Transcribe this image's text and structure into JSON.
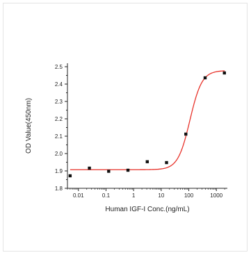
{
  "chart_data": {
    "type": "scatter",
    "title": "",
    "xlabel": "Human IGF-I Conc.(ng/mL)",
    "ylabel": "OD Value(450nm)",
    "x_scale": "log",
    "xlim": [
      0.004,
      2500
    ],
    "ylim": [
      1.8,
      2.52
    ],
    "x_ticks": [
      0.01,
      0.1,
      1,
      10,
      100,
      1000
    ],
    "x_tick_labels": [
      "0.01",
      "0.1",
      "1",
      "10",
      "100",
      "1000"
    ],
    "y_ticks": [
      1.8,
      1.9,
      2.0,
      2.1,
      2.2,
      2.3,
      2.4,
      2.5
    ],
    "y_tick_labels": [
      "1.8",
      "1.9",
      "2.0",
      "2.1",
      "2.2",
      "2.3",
      "2.4",
      "2.5"
    ],
    "grid": false,
    "legend": "none",
    "series": [
      {
        "type": "scatter",
        "marker": "square",
        "color": "#111111",
        "points": [
          {
            "x": 0.005,
            "y": 1.872
          },
          {
            "x": 0.025,
            "y": 1.916
          },
          {
            "x": 0.125,
            "y": 1.898
          },
          {
            "x": 0.625,
            "y": 1.904
          },
          {
            "x": 3.125,
            "y": 1.953
          },
          {
            "x": 15.625,
            "y": 1.948
          },
          {
            "x": 78.125,
            "y": 2.112
          },
          {
            "x": 390.625,
            "y": 2.436
          },
          {
            "x": 1953.125,
            "y": 2.464
          }
        ]
      },
      {
        "type": "line",
        "fit": "4PL",
        "color": "#e8322a",
        "params": {
          "bottom": 1.907,
          "top": 2.478,
          "ec50": 110,
          "hill": 2.0
        }
      }
    ]
  }
}
